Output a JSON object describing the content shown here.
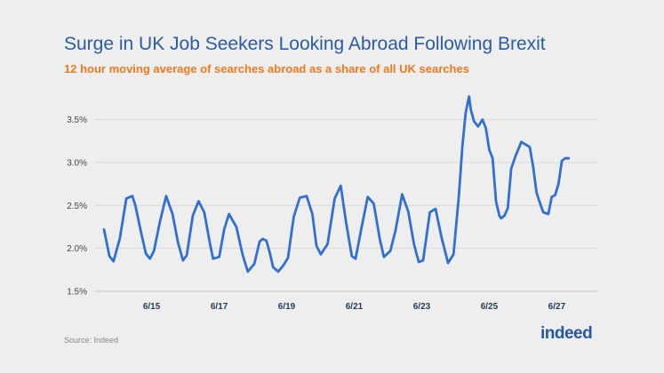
{
  "chart_data": {
    "type": "line",
    "title": "Surge in UK Job Seekers Looking Abroad Following Brexit",
    "subtitle": "12 hour moving average of searches abroad as a share of all UK searches",
    "xlabel": "",
    "ylabel": "",
    "ylim": [
      1.5,
      3.9
    ],
    "xlim": [
      13.3,
      28.2
    ],
    "yticks": [
      1.5,
      2.0,
      2.5,
      3.0,
      3.5
    ],
    "ytick_labels": [
      "1.5%",
      "2.0%",
      "2.5%",
      "3.0%",
      "3.5%"
    ],
    "xticks": [
      15,
      17,
      19,
      21,
      23,
      25,
      27
    ],
    "xtick_labels": [
      "6/15",
      "6/17",
      "6/19",
      "6/21",
      "6/23",
      "6/25",
      "6/27"
    ],
    "grid": "horizontal",
    "legend": "none",
    "line_color": "#2f6fd6",
    "series": [
      {
        "x": [
          13.59,
          13.75,
          13.87,
          14.06,
          14.25,
          14.43,
          14.52,
          14.68,
          14.83,
          14.95,
          15.07,
          15.24,
          15.43,
          15.62,
          15.78,
          15.93,
          16.04,
          16.22,
          16.39,
          16.56,
          16.73,
          16.82,
          17.0,
          17.15,
          17.29,
          17.51,
          17.7,
          17.85,
          18.04,
          18.2,
          18.29,
          18.4,
          18.5,
          18.6,
          18.75,
          18.9,
          19.04,
          19.21,
          19.39,
          19.59,
          19.76,
          19.88,
          20.01,
          20.21,
          20.42,
          20.6,
          20.76,
          20.93,
          21.04,
          21.22,
          21.4,
          21.58,
          21.76,
          21.88,
          22.07,
          22.22,
          22.42,
          22.6,
          22.77,
          22.91,
          23.04,
          23.24,
          23.41,
          23.59,
          23.78,
          23.94,
          24.1,
          24.2,
          24.3,
          24.4,
          24.45,
          24.55,
          24.67,
          24.8,
          24.9,
          25.0,
          25.1,
          25.2,
          25.3,
          25.35,
          25.45,
          25.55,
          25.65,
          25.78,
          25.95,
          26.2,
          26.3,
          26.4,
          26.5,
          26.6,
          26.75,
          26.85,
          26.95,
          27.05,
          27.15,
          27.25,
          27.35
        ],
        "y": [
          2.22,
          1.91,
          1.85,
          2.12,
          2.58,
          2.61,
          2.5,
          2.2,
          1.94,
          1.88,
          1.97,
          2.3,
          2.61,
          2.4,
          2.07,
          1.86,
          1.92,
          2.38,
          2.55,
          2.42,
          2.05,
          1.88,
          1.9,
          2.22,
          2.4,
          2.25,
          1.92,
          1.73,
          1.82,
          2.08,
          2.11,
          2.09,
          1.95,
          1.78,
          1.73,
          1.8,
          1.89,
          2.37,
          2.59,
          2.61,
          2.4,
          2.03,
          1.93,
          2.05,
          2.58,
          2.73,
          2.3,
          1.91,
          1.88,
          2.25,
          2.6,
          2.52,
          2.1,
          1.9,
          1.97,
          2.2,
          2.63,
          2.43,
          2.05,
          1.84,
          1.86,
          2.42,
          2.46,
          2.12,
          1.83,
          1.93,
          2.62,
          3.18,
          3.58,
          3.77,
          3.62,
          3.48,
          3.42,
          3.5,
          3.4,
          3.15,
          3.05,
          2.55,
          2.38,
          2.35,
          2.38,
          2.47,
          2.93,
          3.08,
          3.24,
          3.18,
          2.95,
          2.65,
          2.53,
          2.42,
          2.4,
          2.6,
          2.62,
          2.75,
          3.02,
          3.05,
          3.05
        ]
      }
    ],
    "source": "Source: Indeed",
    "logo_text": "indeed"
  }
}
